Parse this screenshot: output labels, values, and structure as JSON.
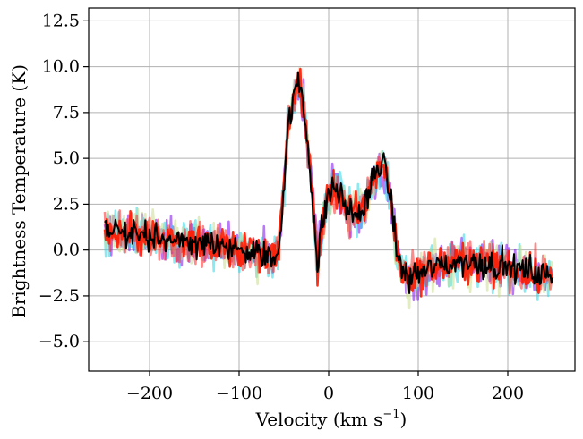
{
  "chart_data": {
    "type": "line",
    "xlabel": "Velocity (km s",
    "xlabel_sup": "−1",
    "xlabel_end": ")",
    "ylabel": "Brightness Temperature (K)",
    "xlim": [
      -268,
      275
    ],
    "ylim": [
      -6.6,
      13.2
    ],
    "grid": true,
    "xticks": [
      -200,
      -100,
      0,
      100,
      200
    ],
    "xtick_labels": [
      "−200",
      "−100",
      "0",
      "100",
      "200"
    ],
    "yticks": [
      -5.0,
      -2.5,
      0.0,
      2.5,
      5.0,
      7.5,
      10.0,
      12.5
    ],
    "ytick_labels": [
      "−5.0",
      "−2.5",
      "0.0",
      "2.5",
      "5.0",
      "7.5",
      "10.0",
      "12.5"
    ],
    "model_profile": {
      "x": [
        -250,
        -200,
        -150,
        -100,
        -70,
        -60,
        -55,
        -50,
        -45,
        -40,
        -35,
        -30,
        -25,
        -20,
        -15,
        -12,
        -10,
        -5,
        0,
        5,
        10,
        15,
        20,
        25,
        30,
        35,
        40,
        45,
        50,
        55,
        60,
        65,
        70,
        75,
        80,
        90,
        100,
        120,
        150,
        200,
        250
      ],
      "y": [
        1.0,
        0.8,
        0.4,
        0.0,
        -0.3,
        -0.5,
        0.5,
        3.5,
        7.0,
        8.0,
        9.2,
        8.6,
        6.5,
        4.0,
        1.0,
        -1.5,
        0.5,
        2.0,
        3.0,
        3.5,
        3.2,
        2.8,
        2.2,
        2.0,
        2.0,
        2.0,
        2.3,
        3.0,
        4.0,
        4.5,
        4.8,
        4.0,
        2.5,
        0.5,
        -1.0,
        -1.5,
        -1.3,
        -0.9,
        -0.6,
        -0.9,
        -1.5
      ]
    },
    "series": [
      {
        "color": "#8b1cf5",
        "opacity": 0.6,
        "noise": 1.6,
        "width": 2.6
      },
      {
        "color": "#28d8e8",
        "opacity": 0.55,
        "noise": 1.7,
        "width": 2.6
      },
      {
        "color": "#c8dc8c",
        "opacity": 0.55,
        "noise": 1.6,
        "width": 2.6
      },
      {
        "color": "#ff2a2a",
        "opacity": 0.55,
        "noise": 1.5,
        "width": 2.6
      },
      {
        "color": "#ff1a00",
        "opacity": 0.9,
        "noise": 1.3,
        "width": 2.6
      },
      {
        "color": "#000000",
        "opacity": 1.0,
        "noise": 1.0,
        "width": 2.0
      }
    ],
    "n_points": 420
  }
}
